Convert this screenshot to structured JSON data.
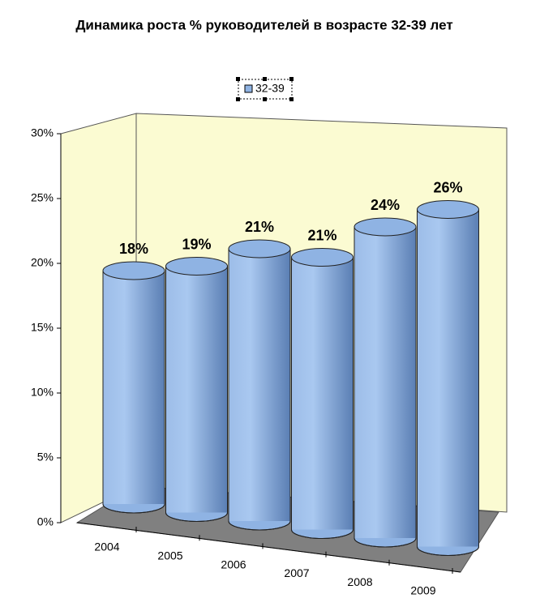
{
  "chart_data": {
    "type": "cylinder",
    "title": "Динамика роста % руководителей в возрасте 32-39 лет",
    "categories": [
      "2004",
      "2005",
      "2006",
      "2007",
      "2008",
      "2009"
    ],
    "series": [
      {
        "name": "32-39",
        "color": "#8fb3e3",
        "values": [
          18,
          19,
          21,
          21,
          24,
          26
        ],
        "value_labels": [
          "18%",
          "19%",
          "21%",
          "21%",
          "24%",
          "26%"
        ]
      }
    ],
    "ylim": [
      0,
      30
    ],
    "yticks": [
      {
        "value": 0,
        "label": "0%"
      },
      {
        "value": 5,
        "label": "5%"
      },
      {
        "value": 10,
        "label": "10%"
      },
      {
        "value": 15,
        "label": "15%"
      },
      {
        "value": 20,
        "label": "20%"
      },
      {
        "value": 25,
        "label": "25%"
      },
      {
        "value": 30,
        "label": "30%"
      }
    ]
  }
}
